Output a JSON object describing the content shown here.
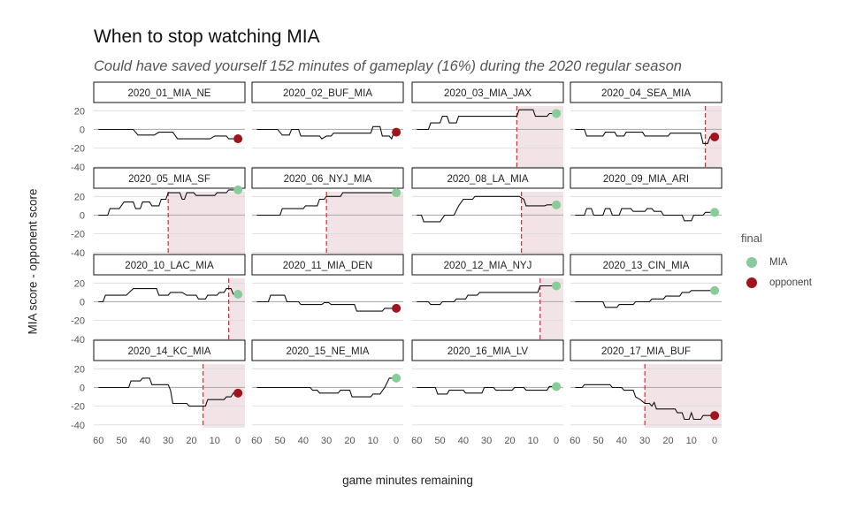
{
  "chart_data": {
    "type": "line",
    "title": "When to stop watching MIA",
    "subtitle": "Could have saved yourself 152 minutes of gameplay (16%) during the 2020 regular season",
    "xlabel": "game minutes remaining",
    "ylabel": "MIA score - opponent score",
    "x_ticks": [
      60,
      50,
      40,
      30,
      20,
      10,
      0
    ],
    "y_ticks": [
      20,
      0,
      -20,
      -40
    ],
    "xlim": [
      62,
      -3
    ],
    "ylim": [
      -43,
      25
    ],
    "legend": {
      "title": "final",
      "placement": "right",
      "entries": [
        {
          "label": "MIA",
          "color": "#88cc99"
        },
        {
          "label": "opponent",
          "color": "#a0141e"
        }
      ]
    },
    "colors": {
      "line": "#111111",
      "cutoff": "#e8262a",
      "shade": "#f2e3e6",
      "grid": "#d9d9d9",
      "zero_line": "#b0b0b0"
    },
    "games": [
      {
        "name": "2020_01_MIA_NE",
        "final": "opponent",
        "cutoff": null,
        "points": [
          [
            60,
            0
          ],
          [
            45,
            0
          ],
          [
            43,
            -6
          ],
          [
            36,
            -6
          ],
          [
            34,
            -3
          ],
          [
            28,
            -3
          ],
          [
            26,
            -10
          ],
          [
            12,
            -10
          ],
          [
            10,
            -7
          ],
          [
            5,
            -7
          ],
          [
            4,
            -10
          ],
          [
            0,
            -10
          ]
        ]
      },
      {
        "name": "2020_02_BUF_MIA",
        "final": "opponent",
        "cutoff": null,
        "points": [
          [
            60,
            0
          ],
          [
            51,
            0
          ],
          [
            49,
            -6
          ],
          [
            46,
            -6
          ],
          [
            45,
            0
          ],
          [
            42,
            0
          ],
          [
            41,
            -7
          ],
          [
            33,
            -7
          ],
          [
            32,
            -10
          ],
          [
            30,
            -7
          ],
          [
            28,
            -7
          ],
          [
            27,
            -4
          ],
          [
            11,
            -4
          ],
          [
            10,
            3
          ],
          [
            7,
            3
          ],
          [
            6,
            -7
          ],
          [
            3,
            -7
          ],
          [
            2,
            -10
          ],
          [
            1,
            -3
          ],
          [
            0,
            -3
          ]
        ]
      },
      {
        "name": "2020_03_MIA_JAX",
        "final": "MIA",
        "cutoff": 17,
        "points": [
          [
            60,
            0
          ],
          [
            55,
            0
          ],
          [
            54,
            7
          ],
          [
            50,
            7
          ],
          [
            49,
            14
          ],
          [
            47,
            14
          ],
          [
            46,
            7
          ],
          [
            43,
            7
          ],
          [
            42,
            14
          ],
          [
            17,
            14
          ],
          [
            16,
            21
          ],
          [
            10,
            21
          ],
          [
            9,
            14
          ],
          [
            4,
            14
          ],
          [
            3,
            17
          ],
          [
            0,
            17
          ]
        ]
      },
      {
        "name": "2020_04_SEA_MIA",
        "final": "opponent",
        "cutoff": 4,
        "points": [
          [
            60,
            0
          ],
          [
            56,
            0
          ],
          [
            55,
            -7
          ],
          [
            48,
            -7
          ],
          [
            47,
            -3
          ],
          [
            43,
            -3
          ],
          [
            42,
            -7
          ],
          [
            39,
            -7
          ],
          [
            38,
            -3
          ],
          [
            31,
            -3
          ],
          [
            30,
            -7
          ],
          [
            20,
            -7
          ],
          [
            19,
            -4
          ],
          [
            6,
            -4
          ],
          [
            5,
            -15
          ],
          [
            3,
            -15
          ],
          [
            2,
            -8
          ],
          [
            0,
            -8
          ]
        ]
      },
      {
        "name": "2020_05_MIA_SF",
        "final": "MIA",
        "cutoff": 30,
        "points": [
          [
            60,
            0
          ],
          [
            56,
            0
          ],
          [
            55,
            7
          ],
          [
            51,
            7
          ],
          [
            49,
            14
          ],
          [
            45,
            14
          ],
          [
            44,
            7
          ],
          [
            42,
            7
          ],
          [
            41,
            14
          ],
          [
            38,
            14
          ],
          [
            37,
            10
          ],
          [
            34,
            10
          ],
          [
            33,
            17
          ],
          [
            31,
            17
          ],
          [
            30,
            24
          ],
          [
            25,
            24
          ],
          [
            24,
            17
          ],
          [
            23,
            17
          ],
          [
            22,
            24
          ],
          [
            19,
            24
          ],
          [
            18,
            21
          ],
          [
            10,
            21
          ],
          [
            9,
            24
          ],
          [
            5,
            24
          ],
          [
            4,
            27
          ],
          [
            0,
            27
          ]
        ]
      },
      {
        "name": "2020_06_NYJ_MIA",
        "final": "MIA",
        "cutoff": 30,
        "points": [
          [
            60,
            0
          ],
          [
            50,
            0
          ],
          [
            49,
            7
          ],
          [
            40,
            7
          ],
          [
            39,
            10
          ],
          [
            34,
            10
          ],
          [
            33,
            17
          ],
          [
            31,
            17
          ],
          [
            30,
            20
          ],
          [
            24,
            20
          ],
          [
            23,
            24
          ],
          [
            0,
            24
          ]
        ]
      },
      {
        "name": "2020_08_LA_MIA",
        "final": "MIA",
        "cutoff": 15,
        "points": [
          [
            60,
            0
          ],
          [
            58,
            0
          ],
          [
            57,
            -7
          ],
          [
            50,
            -7
          ],
          [
            48,
            0
          ],
          [
            44,
            0
          ],
          [
            42,
            10
          ],
          [
            40,
            17
          ],
          [
            36,
            17
          ],
          [
            35,
            20
          ],
          [
            16,
            20
          ],
          [
            14,
            17
          ],
          [
            13,
            10
          ],
          [
            5,
            10
          ],
          [
            4,
            11
          ],
          [
            0,
            11
          ]
        ]
      },
      {
        "name": "2020_09_MIA_ARI",
        "final": "MIA",
        "cutoff": null,
        "points": [
          [
            60,
            0
          ],
          [
            56,
            0
          ],
          [
            55,
            7
          ],
          [
            53,
            7
          ],
          [
            52,
            0
          ],
          [
            48,
            0
          ],
          [
            47,
            7
          ],
          [
            45,
            7
          ],
          [
            44,
            0
          ],
          [
            41,
            0
          ],
          [
            40,
            7
          ],
          [
            36,
            7
          ],
          [
            35,
            4
          ],
          [
            30,
            4
          ],
          [
            29,
            7
          ],
          [
            27,
            7
          ],
          [
            26,
            4
          ],
          [
            23,
            4
          ],
          [
            22,
            0
          ],
          [
            14,
            0
          ],
          [
            13,
            -6
          ],
          [
            10,
            -6
          ],
          [
            9,
            0
          ],
          [
            5,
            0
          ],
          [
            4,
            3
          ],
          [
            0,
            3
          ]
        ]
      },
      {
        "name": "2020_10_LAC_MIA",
        "final": "MIA",
        "cutoff": 4,
        "points": [
          [
            60,
            0
          ],
          [
            58,
            0
          ],
          [
            57,
            7
          ],
          [
            48,
            7
          ],
          [
            45,
            14
          ],
          [
            35,
            14
          ],
          [
            34,
            7
          ],
          [
            30,
            7
          ],
          [
            29,
            10
          ],
          [
            24,
            10
          ],
          [
            22,
            7
          ],
          [
            18,
            7
          ],
          [
            17,
            3
          ],
          [
            14,
            3
          ],
          [
            13,
            7
          ],
          [
            9,
            7
          ],
          [
            8,
            10
          ],
          [
            6,
            10
          ],
          [
            5,
            14
          ],
          [
            3,
            14
          ],
          [
            2,
            8
          ],
          [
            0,
            8
          ]
        ]
      },
      {
        "name": "2020_11_MIA_DEN",
        "final": "opponent",
        "cutoff": null,
        "points": [
          [
            60,
            0
          ],
          [
            55,
            0
          ],
          [
            54,
            7
          ],
          [
            48,
            7
          ],
          [
            47,
            0
          ],
          [
            42,
            0
          ],
          [
            41,
            -3
          ],
          [
            32,
            -3
          ],
          [
            31,
            -1
          ],
          [
            29,
            -1
          ],
          [
            28,
            -3
          ],
          [
            18,
            -3
          ],
          [
            17,
            -10
          ],
          [
            6,
            -10
          ],
          [
            5,
            -7
          ],
          [
            0,
            -7
          ]
        ]
      },
      {
        "name": "2020_12_MIA_NYJ",
        "final": "MIA",
        "cutoff": 7,
        "points": [
          [
            60,
            0
          ],
          [
            55,
            0
          ],
          [
            54,
            -3
          ],
          [
            50,
            -3
          ],
          [
            49,
            0
          ],
          [
            44,
            0
          ],
          [
            43,
            3
          ],
          [
            39,
            3
          ],
          [
            38,
            7
          ],
          [
            34,
            7
          ],
          [
            33,
            10
          ],
          [
            8,
            10
          ],
          [
            7,
            17
          ],
          [
            0,
            17
          ]
        ]
      },
      {
        "name": "2020_13_CIN_MIA",
        "final": "MIA",
        "cutoff": null,
        "points": [
          [
            60,
            0
          ],
          [
            48,
            0
          ],
          [
            47,
            -6
          ],
          [
            42,
            -6
          ],
          [
            41,
            -3
          ],
          [
            35,
            -3
          ],
          [
            34,
            0
          ],
          [
            28,
            0
          ],
          [
            27,
            3
          ],
          [
            22,
            3
          ],
          [
            21,
            6
          ],
          [
            15,
            6
          ],
          [
            14,
            10
          ],
          [
            11,
            10
          ],
          [
            10,
            12
          ],
          [
            0,
            12
          ]
        ]
      },
      {
        "name": "2020_14_KC_MIA",
        "final": "opponent",
        "cutoff": 15,
        "points": [
          [
            60,
            0
          ],
          [
            47,
            0
          ],
          [
            46,
            7
          ],
          [
            42,
            7
          ],
          [
            41,
            10
          ],
          [
            38,
            10
          ],
          [
            37,
            3
          ],
          [
            30,
            3
          ],
          [
            29,
            -3
          ],
          [
            28,
            -17
          ],
          [
            22,
            -17
          ],
          [
            21,
            -20
          ],
          [
            14,
            -20
          ],
          [
            13,
            -13
          ],
          [
            6,
            -13
          ],
          [
            5,
            -10
          ],
          [
            3,
            -10
          ],
          [
            2,
            -6
          ],
          [
            0,
            -6
          ]
        ]
      },
      {
        "name": "2020_15_NE_MIA",
        "final": "MIA",
        "cutoff": null,
        "points": [
          [
            60,
            0
          ],
          [
            37,
            0
          ],
          [
            36,
            -3
          ],
          [
            34,
            -3
          ],
          [
            33,
            -6
          ],
          [
            25,
            -6
          ],
          [
            24,
            -3
          ],
          [
            20,
            -3
          ],
          [
            19,
            -10
          ],
          [
            11,
            -10
          ],
          [
            10,
            -7
          ],
          [
            7,
            -7
          ],
          [
            5,
            0
          ],
          [
            3,
            10
          ],
          [
            0,
            10
          ]
        ]
      },
      {
        "name": "2020_16_MIA_LV",
        "final": "MIA",
        "cutoff": null,
        "points": [
          [
            60,
            0
          ],
          [
            52,
            0
          ],
          [
            51,
            -7
          ],
          [
            47,
            -7
          ],
          [
            46,
            -3
          ],
          [
            40,
            -3
          ],
          [
            39,
            -6
          ],
          [
            32,
            -6
          ],
          [
            31,
            0
          ],
          [
            27,
            0
          ],
          [
            26,
            -3
          ],
          [
            19,
            -3
          ],
          [
            18,
            0
          ],
          [
            14,
            0
          ],
          [
            13,
            -3
          ],
          [
            4,
            -3
          ],
          [
            3,
            1
          ],
          [
            0,
            1
          ]
        ]
      },
      {
        "name": "2020_17_MIA_BUF",
        "final": "opponent",
        "cutoff": 30,
        "points": [
          [
            60,
            0
          ],
          [
            57,
            0
          ],
          [
            56,
            3
          ],
          [
            45,
            3
          ],
          [
            44,
            0
          ],
          [
            40,
            0
          ],
          [
            39,
            -3
          ],
          [
            35,
            -3
          ],
          [
            34,
            -10
          ],
          [
            32,
            -13
          ],
          [
            30,
            -17
          ],
          [
            28,
            -17
          ],
          [
            27,
            -20
          ],
          [
            26,
            -16
          ],
          [
            25,
            -23
          ],
          [
            17,
            -23
          ],
          [
            16,
            -27
          ],
          [
            14,
            -27
          ],
          [
            13,
            -34
          ],
          [
            11,
            -34
          ],
          [
            10,
            -27
          ],
          [
            9,
            -34
          ],
          [
            6,
            -34
          ],
          [
            5,
            -30
          ],
          [
            0,
            -30
          ]
        ]
      }
    ]
  }
}
